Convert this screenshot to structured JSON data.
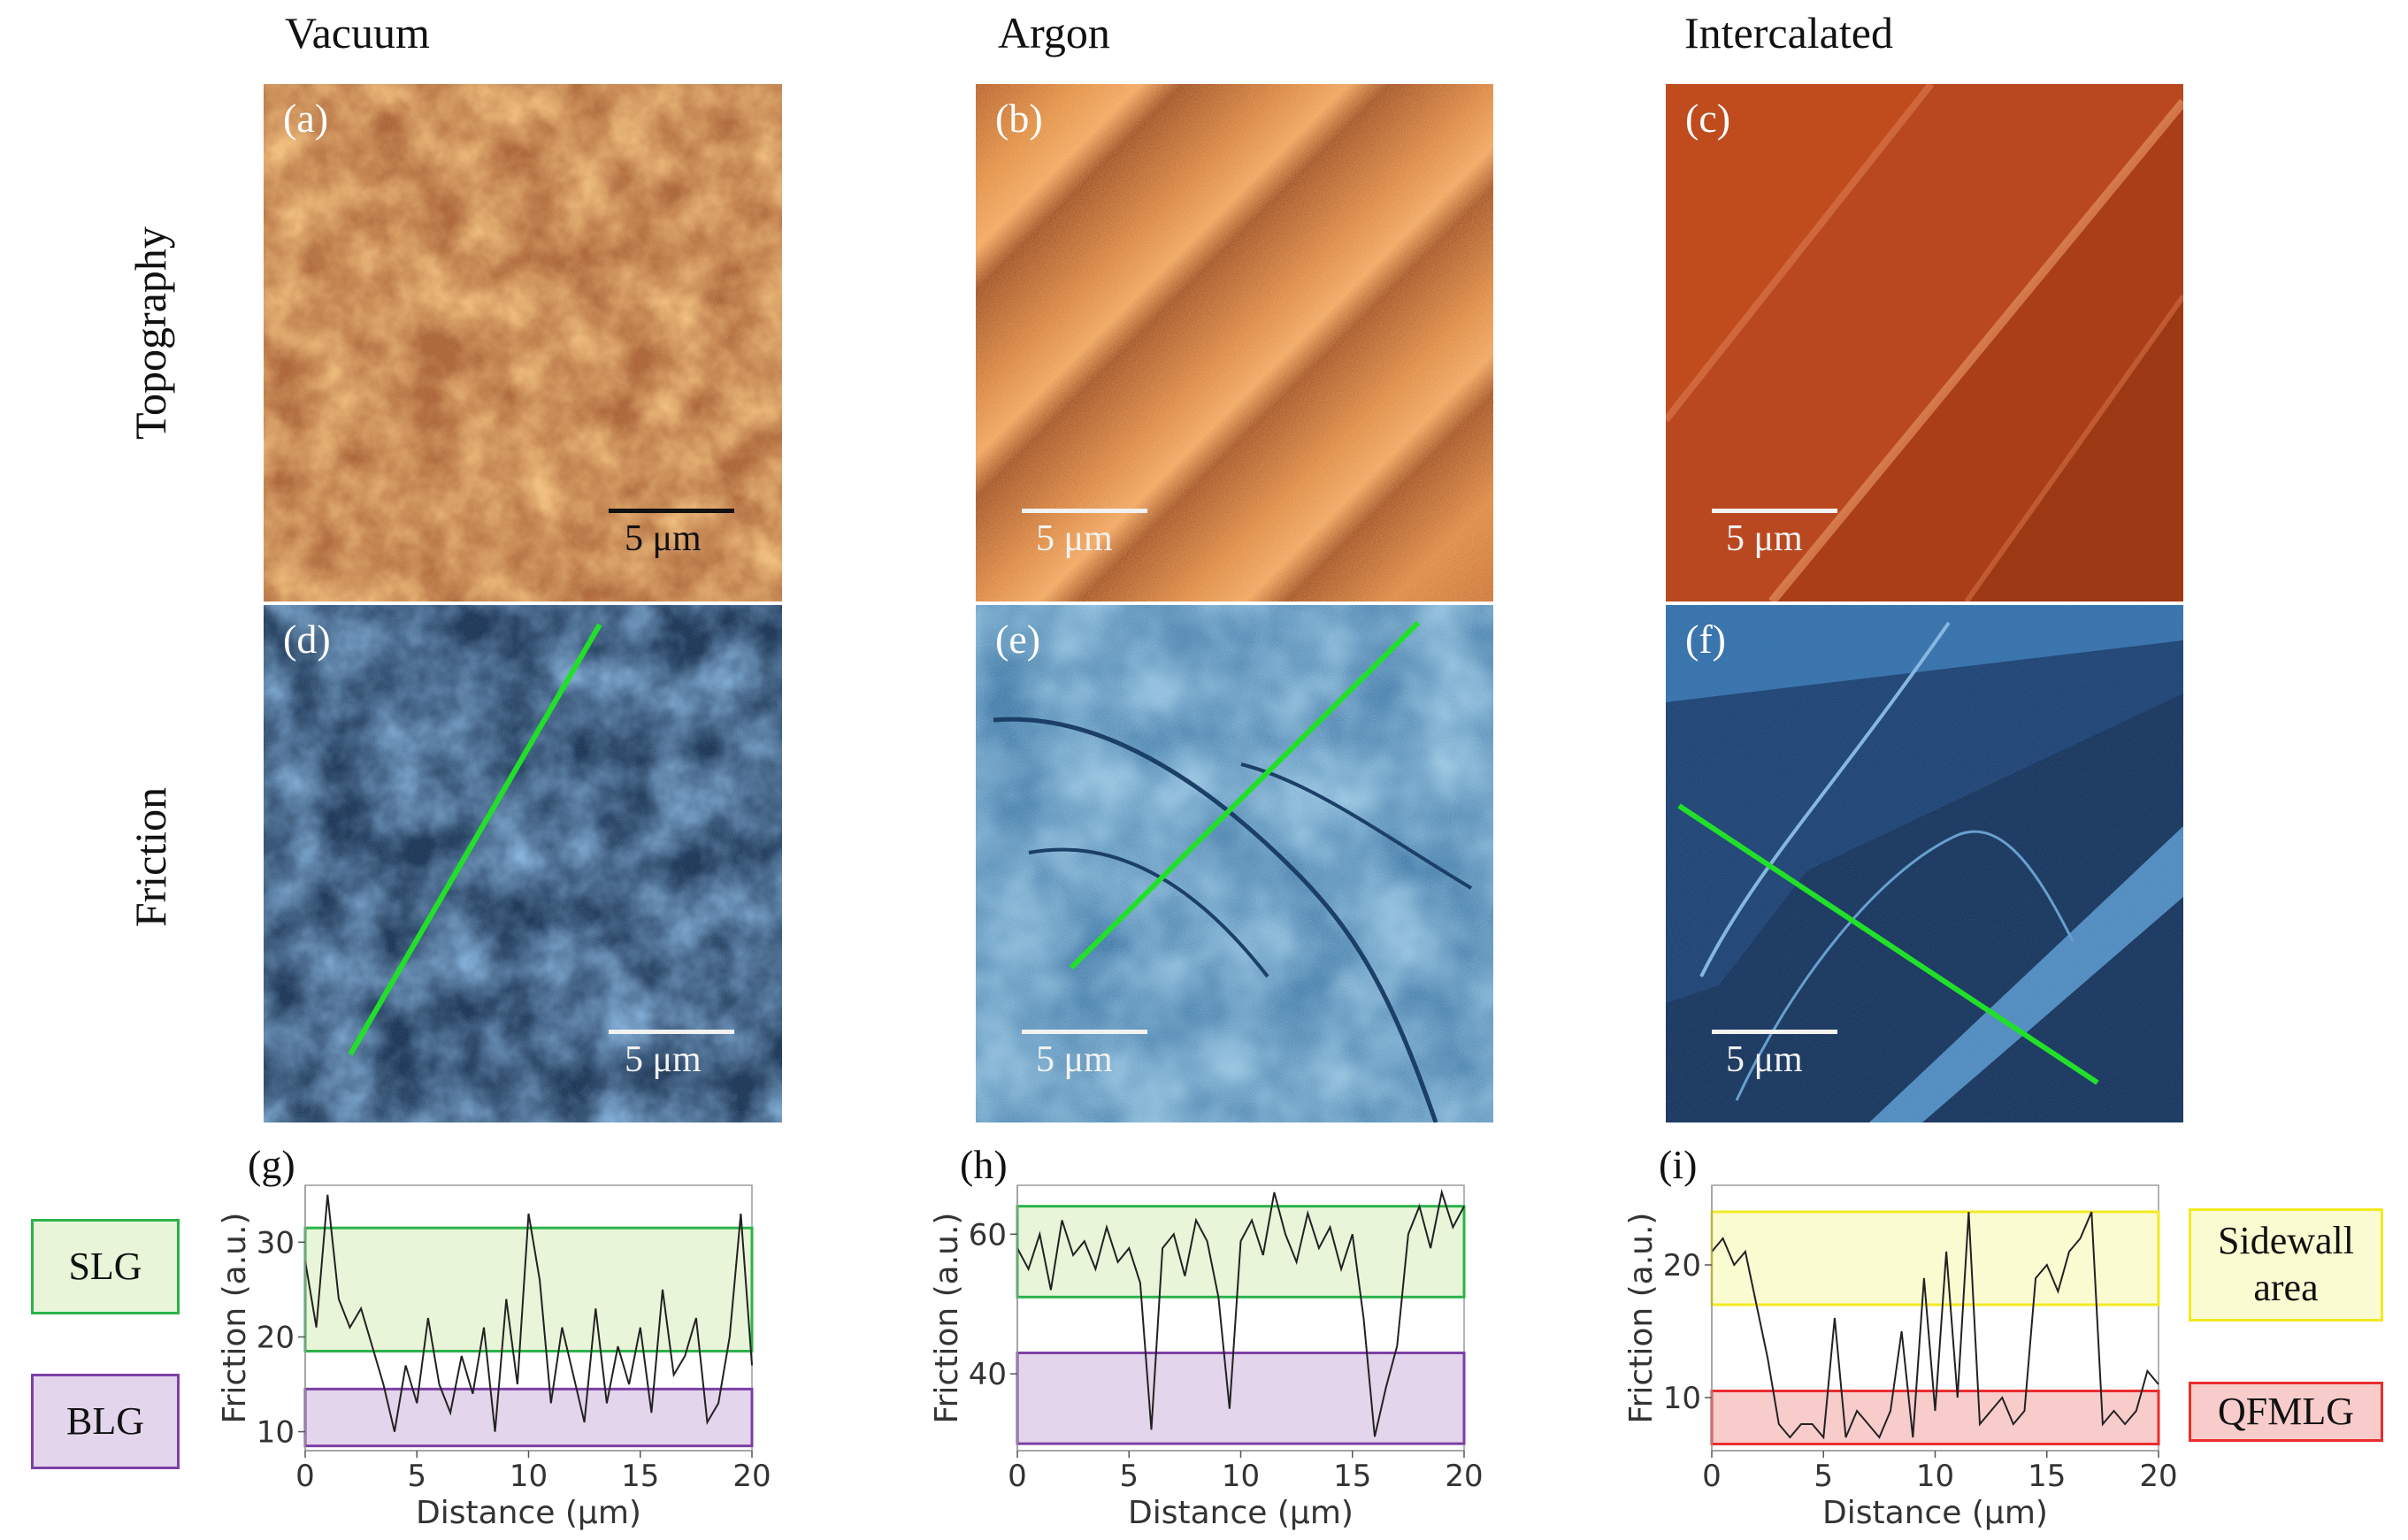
{
  "columns": [
    "Vacuum",
    "Argon",
    "Intercalated"
  ],
  "rows": [
    "Topography",
    "Friction"
  ],
  "panels": {
    "a": {
      "label": "(a)",
      "scale": "5 μm"
    },
    "b": {
      "label": "(b)",
      "scale": "5 μm"
    },
    "c": {
      "label": "(c)",
      "scale": "5 μm"
    },
    "d": {
      "label": "(d)",
      "scale": "5 μm"
    },
    "e": {
      "label": "(e)",
      "scale": "5 μm"
    },
    "f": {
      "label": "(f)",
      "scale": "5 μm"
    },
    "g": {
      "label": "(g)"
    },
    "h": {
      "label": "(h)"
    },
    "i": {
      "label": "(i)"
    }
  },
  "legend": {
    "slg": "SLG",
    "blg": "BLG",
    "sidewall_line1": "Sidewall",
    "sidewall_line2": "area",
    "qfmlg": "QFMLG"
  },
  "colors": {
    "topography": "#d8772a",
    "friction": "#2a5f98",
    "profile_line": "#22e02a",
    "slg_fill": "#e9f5d8",
    "slg_border": "#2bb34a",
    "blg_fill": "#e3d5ec",
    "blg_border": "#7d3fa5",
    "sidewall_fill": "#fbfbd2",
    "sidewall_border": "#f2ea22",
    "qfmlg_fill": "#f9cccc",
    "qfmlg_border": "#ea2d2d"
  },
  "chart_data": [
    {
      "type": "line",
      "panel": "(g)",
      "xlabel": "Distance (μm)",
      "ylabel": "Friction (a.u.)",
      "xlim": [
        0,
        20
      ],
      "ylim": [
        8,
        36
      ],
      "xticks": [
        0,
        5,
        10,
        15,
        20
      ],
      "yticks": [
        10,
        20,
        30
      ],
      "bands": [
        {
          "name": "SLG",
          "range": [
            18.5,
            31.5
          ]
        },
        {
          "name": "BLG",
          "range": [
            8.5,
            14.5
          ]
        }
      ],
      "x": [
        0,
        0.5,
        1,
        1.5,
        2,
        2.5,
        3,
        3.5,
        4,
        4.5,
        5,
        5.5,
        6,
        6.5,
        7,
        7.5,
        8,
        8.5,
        9,
        9.5,
        10,
        10.5,
        11,
        11.5,
        12,
        12.5,
        13,
        13.5,
        14,
        14.5,
        15,
        15.5,
        16,
        16.5,
        17,
        17.5,
        18,
        18.5,
        19,
        19.5,
        20
      ],
      "values": [
        28,
        21,
        35,
        24,
        21,
        23,
        19,
        15,
        10,
        17,
        13,
        22,
        15,
        12,
        18,
        14,
        21,
        10,
        24,
        15,
        33,
        26,
        13,
        21,
        16,
        11,
        23,
        13,
        19,
        15,
        21,
        12,
        25,
        16,
        18,
        22,
        11,
        13,
        20,
        33,
        17
      ]
    },
    {
      "type": "line",
      "panel": "(h)",
      "xlabel": "Distance (μm)",
      "ylabel": "Friction (a.u.)",
      "xlim": [
        0,
        20
      ],
      "ylim": [
        29,
        67
      ],
      "xticks": [
        0,
        5,
        10,
        15,
        20
      ],
      "yticks": [
        40,
        60
      ],
      "bands": [
        {
          "name": "SLG",
          "range": [
            51,
            64
          ]
        },
        {
          "name": "BLG",
          "range": [
            30,
            43
          ]
        }
      ],
      "x": [
        0,
        0.5,
        1,
        1.5,
        2,
        2.5,
        3,
        3.5,
        4,
        4.5,
        5,
        5.5,
        6,
        6.5,
        7,
        7.5,
        8,
        8.5,
        9,
        9.5,
        10,
        10.5,
        11,
        11.5,
        12,
        12.5,
        13,
        13.5,
        14,
        14.5,
        15,
        15.5,
        16,
        16.5,
        17,
        17.5,
        18,
        18.5,
        19,
        19.5,
        20
      ],
      "values": [
        58,
        55,
        60,
        52,
        62,
        57,
        59,
        55,
        61,
        56,
        58,
        53,
        32,
        58,
        60,
        54,
        62,
        59,
        51,
        35,
        59,
        62,
        57,
        66,
        60,
        56,
        63,
        58,
        61,
        55,
        60,
        48,
        31,
        38,
        44,
        60,
        64,
        58,
        66,
        61,
        64
      ]
    },
    {
      "type": "line",
      "panel": "(i)",
      "xlabel": "Distance (μm)",
      "ylabel": "Friction (a.u.)",
      "xlim": [
        0,
        20
      ],
      "ylim": [
        6,
        26
      ],
      "xticks": [
        0,
        5,
        10,
        15,
        20
      ],
      "yticks": [
        10,
        20
      ],
      "bands": [
        {
          "name": "Sidewall area",
          "range": [
            17,
            24
          ]
        },
        {
          "name": "QFMLG",
          "range": [
            6.5,
            10.5
          ]
        }
      ],
      "x": [
        0,
        0.5,
        1,
        1.5,
        2,
        2.5,
        3,
        3.5,
        4,
        4.5,
        5,
        5.5,
        6,
        6.5,
        7,
        7.5,
        8,
        8.5,
        9,
        9.5,
        10,
        10.5,
        11,
        11.5,
        12,
        12.5,
        13,
        13.5,
        14,
        14.5,
        15,
        15.5,
        16,
        16.5,
        17,
        17.5,
        18,
        18.5,
        19,
        19.5,
        20
      ],
      "values": [
        21,
        22,
        20,
        21,
        17,
        13,
        8,
        7,
        8,
        8,
        7,
        16,
        7,
        9,
        8,
        7,
        9,
        15,
        7,
        19,
        9,
        21,
        10,
        24,
        8,
        9,
        10,
        8,
        9,
        19,
        20,
        18,
        21,
        22,
        24,
        8,
        9,
        8,
        9,
        12,
        11
      ]
    }
  ]
}
